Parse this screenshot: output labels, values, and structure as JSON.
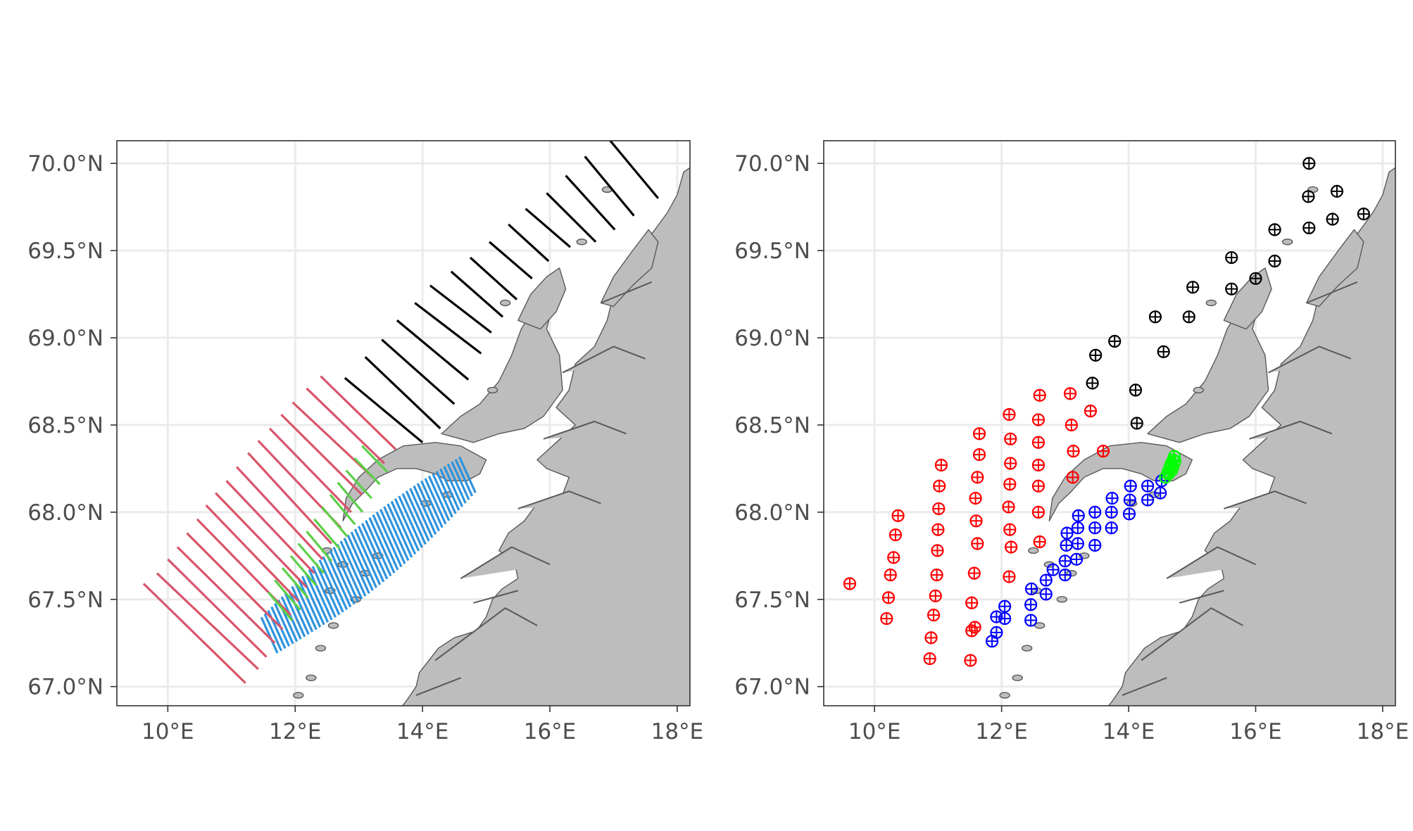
{
  "axes": {
    "x_ticks": [
      "10°E",
      "12°E",
      "14°E",
      "16°E",
      "18°E"
    ],
    "y_ticks": [
      "70.0°N",
      "69.5°N",
      "69.0°N",
      "68.5°N",
      "68.0°N",
      "67.5°N",
      "67.0°N"
    ]
  },
  "colors": {
    "red": "#d9546b",
    "green": "#5ccf48",
    "blue": "#2e93dd",
    "black": "#000000",
    "pt_red": "#ff0000",
    "pt_blue": "#0000ff",
    "pt_green": "#00ff00",
    "pt_black": "#000000",
    "land": "#bdbdbd"
  },
  "chart_data": [
    {
      "type": "map-transects",
      "xlim": [
        9.2,
        18.2
      ],
      "ylim": [
        66.89,
        70.13
      ],
      "x_ticks": [
        10,
        12,
        14,
        16,
        18
      ],
      "y_ticks": [
        70.0,
        69.5,
        69.0,
        68.5,
        68.0,
        67.5,
        67.0
      ],
      "transects": {
        "red": [
          [
            [
              9.62,
              67.59
            ],
            [
              11.22,
              67.02
            ]
          ],
          [
            [
              9.83,
              67.65
            ],
            [
              11.42,
              67.1
            ]
          ],
          [
            [
              10.0,
              67.73
            ],
            [
              11.55,
              67.17
            ]
          ],
          [
            [
              10.15,
              67.8
            ],
            [
              11.68,
              67.25
            ]
          ],
          [
            [
              10.3,
              67.88
            ],
            [
              11.8,
              67.33
            ]
          ],
          [
            [
              10.46,
              67.96
            ],
            [
              11.93,
              67.41
            ]
          ],
          [
            [
              10.6,
              68.04
            ],
            [
              12.05,
              67.49
            ]
          ],
          [
            [
              10.75,
              68.11
            ],
            [
              12.18,
              67.57
            ]
          ],
          [
            [
              10.92,
              68.18
            ],
            [
              12.3,
              67.65
            ]
          ],
          [
            [
              11.08,
              68.26
            ],
            [
              12.43,
              67.73
            ]
          ],
          [
            [
              11.26,
              68.34
            ],
            [
              12.57,
              67.82
            ]
          ],
          [
            [
              11.42,
              68.41
            ],
            [
              12.72,
              67.91
            ]
          ],
          [
            [
              11.6,
              68.48
            ],
            [
              12.88,
              68.0
            ]
          ],
          [
            [
              11.78,
              68.56
            ],
            [
              13.05,
              68.1
            ]
          ],
          [
            [
              11.96,
              68.63
            ],
            [
              13.22,
              68.2
            ]
          ],
          [
            [
              12.18,
              68.71
            ],
            [
              13.4,
              68.28
            ]
          ],
          [
            [
              12.4,
              68.78
            ],
            [
              13.58,
              68.36
            ]
          ]
        ],
        "green": [
          [
            [
              11.58,
              67.54
            ],
            [
              11.95,
              67.38
            ]
          ],
          [
            [
              11.68,
              67.61
            ],
            [
              12.08,
              67.44
            ]
          ],
          [
            [
              11.8,
              67.68
            ],
            [
              12.2,
              67.51
            ]
          ],
          [
            [
              11.93,
              67.75
            ],
            [
              12.33,
              67.58
            ]
          ],
          [
            [
              12.05,
              67.82
            ],
            [
              12.45,
              67.65
            ]
          ],
          [
            [
              12.18,
              67.89
            ],
            [
              12.57,
              67.72
            ]
          ],
          [
            [
              12.3,
              67.96
            ],
            [
              12.7,
              67.79
            ]
          ],
          [
            [
              12.42,
              68.03
            ],
            [
              12.82,
              67.86
            ]
          ],
          [
            [
              12.55,
              68.1
            ],
            [
              12.94,
              67.93
            ]
          ],
          [
            [
              12.67,
              68.17
            ],
            [
              13.06,
              68.0
            ]
          ],
          [
            [
              12.8,
              68.24
            ],
            [
              13.2,
              68.08
            ]
          ],
          [
            [
              12.93,
              68.31
            ],
            [
              13.33,
              68.16
            ]
          ],
          [
            [
              13.05,
              68.38
            ],
            [
              13.45,
              68.23
            ]
          ]
        ],
        "black": [
          [
            [
              12.78,
              68.77
            ],
            [
              14.0,
              68.4
            ]
          ],
          [
            [
              13.1,
              68.89
            ],
            [
              14.28,
              68.48
            ]
          ],
          [
            [
              13.36,
              68.99
            ],
            [
              14.5,
              68.62
            ]
          ],
          [
            [
              13.6,
              69.1
            ],
            [
              14.72,
              68.76
            ]
          ],
          [
            [
              13.88,
              69.2
            ],
            [
              14.92,
              68.91
            ]
          ],
          [
            [
              14.12,
              69.3
            ],
            [
              15.08,
              69.03
            ]
          ],
          [
            [
              14.45,
              69.38
            ],
            [
              15.26,
              69.12
            ]
          ],
          [
            [
              14.75,
              69.46
            ],
            [
              15.48,
              69.22
            ]
          ],
          [
            [
              15.05,
              69.55
            ],
            [
              15.72,
              69.34
            ]
          ],
          [
            [
              15.35,
              69.65
            ],
            [
              15.98,
              69.44
            ]
          ],
          [
            [
              15.62,
              69.74
            ],
            [
              16.32,
              69.52
            ]
          ],
          [
            [
              15.95,
              69.83
            ],
            [
              16.72,
              69.55
            ]
          ],
          [
            [
              16.25,
              69.93
            ],
            [
              17.02,
              69.62
            ]
          ],
          [
            [
              16.55,
              70.04
            ],
            [
              17.32,
              69.7
            ]
          ],
          [
            [
              16.88,
              70.16
            ],
            [
              17.7,
              69.8
            ]
          ]
        ],
        "blue_zone": {
          "line_count": 56,
          "start": [
            11.57,
            67.3
          ],
          "end": [
            14.68,
            68.22
          ]
        }
      }
    },
    {
      "type": "map-stations",
      "xlim": [
        9.2,
        18.2
      ],
      "ylim": [
        66.89,
        70.13
      ],
      "x_ticks": [
        10,
        12,
        14,
        16,
        18
      ],
      "y_ticks": [
        70.0,
        69.5,
        69.0,
        68.5,
        68.0,
        67.5,
        67.0
      ],
      "stations": {
        "red": [
          [
            9.61,
            67.59
          ],
          [
            10.19,
            67.39
          ],
          [
            10.22,
            67.51
          ],
          [
            10.25,
            67.64
          ],
          [
            10.3,
            67.74
          ],
          [
            10.33,
            67.87
          ],
          [
            10.37,
            67.98
          ],
          [
            10.87,
            67.16
          ],
          [
            10.89,
            67.28
          ],
          [
            10.93,
            67.41
          ],
          [
            10.96,
            67.52
          ],
          [
            10.98,
            67.64
          ],
          [
            10.99,
            67.78
          ],
          [
            11.0,
            67.9
          ],
          [
            11.01,
            68.02
          ],
          [
            11.02,
            68.15
          ],
          [
            11.05,
            68.27
          ],
          [
            11.51,
            67.15
          ],
          [
            11.53,
            67.32
          ],
          [
            11.58,
            67.34
          ],
          [
            11.53,
            67.48
          ],
          [
            11.57,
            67.65
          ],
          [
            11.62,
            67.82
          ],
          [
            11.6,
            67.95
          ],
          [
            11.59,
            68.08
          ],
          [
            11.62,
            68.2
          ],
          [
            11.65,
            68.33
          ],
          [
            11.65,
            68.45
          ],
          [
            12.12,
            67.63
          ],
          [
            12.15,
            67.8
          ],
          [
            12.13,
            67.9
          ],
          [
            12.11,
            68.03
          ],
          [
            12.13,
            68.16
          ],
          [
            12.14,
            68.28
          ],
          [
            12.14,
            68.42
          ],
          [
            12.12,
            68.56
          ],
          [
            12.6,
            67.83
          ],
          [
            12.58,
            68.0
          ],
          [
            12.58,
            68.15
          ],
          [
            12.58,
            68.27
          ],
          [
            12.58,
            68.4
          ],
          [
            12.58,
            68.53
          ],
          [
            12.6,
            68.67
          ],
          [
            13.12,
            68.2
          ],
          [
            13.13,
            68.35
          ],
          [
            13.1,
            68.5
          ],
          [
            13.08,
            68.68
          ],
          [
            13.4,
            68.58
          ],
          [
            13.6,
            68.35
          ]
        ],
        "blue": [
          [
            11.85,
            67.26
          ],
          [
            11.92,
            67.31
          ],
          [
            11.92,
            67.4
          ],
          [
            12.05,
            67.39
          ],
          [
            12.05,
            67.46
          ],
          [
            12.46,
            67.38
          ],
          [
            12.46,
            67.47
          ],
          [
            12.47,
            67.56
          ],
          [
            12.7,
            67.53
          ],
          [
            12.7,
            67.61
          ],
          [
            12.81,
            67.67
          ],
          [
            13.0,
            67.64
          ],
          [
            13.0,
            67.72
          ],
          [
            13.02,
            67.81
          ],
          [
            13.03,
            67.88
          ],
          [
            13.18,
            67.73
          ],
          [
            13.2,
            67.82
          ],
          [
            13.2,
            67.91
          ],
          [
            13.21,
            67.98
          ],
          [
            13.47,
            67.81
          ],
          [
            13.47,
            67.91
          ],
          [
            13.47,
            68.0
          ],
          [
            13.73,
            67.91
          ],
          [
            13.73,
            68.0
          ],
          [
            13.74,
            68.08
          ],
          [
            14.01,
            67.99
          ],
          [
            14.02,
            68.07
          ],
          [
            14.03,
            68.15
          ],
          [
            14.3,
            68.07
          ],
          [
            14.3,
            68.15
          ],
          [
            14.5,
            68.11
          ],
          [
            14.52,
            68.18
          ]
        ],
        "green": [
          [
            14.58,
            68.2
          ],
          [
            14.62,
            68.23
          ],
          [
            14.65,
            68.26
          ],
          [
            14.67,
            68.28
          ],
          [
            14.7,
            68.3
          ],
          [
            14.72,
            68.32
          ],
          [
            14.63,
            68.22
          ],
          [
            14.68,
            68.24
          ],
          [
            14.7,
            68.26
          ],
          [
            14.73,
            68.29
          ]
        ],
        "black": [
          [
            13.43,
            68.74
          ],
          [
            13.48,
            68.9
          ],
          [
            13.78,
            68.98
          ],
          [
            14.11,
            68.7
          ],
          [
            14.13,
            68.51
          ],
          [
            14.42,
            69.12
          ],
          [
            14.55,
            68.92
          ],
          [
            14.95,
            69.12
          ],
          [
            15.01,
            69.29
          ],
          [
            15.62,
            69.28
          ],
          [
            15.62,
            69.46
          ],
          [
            16.0,
            69.34
          ],
          [
            16.3,
            69.44
          ],
          [
            16.3,
            69.62
          ],
          [
            16.84,
            69.63
          ],
          [
            16.83,
            69.81
          ],
          [
            16.84,
            70.0
          ],
          [
            17.21,
            69.68
          ],
          [
            17.28,
            69.84
          ],
          [
            17.7,
            69.71
          ]
        ]
      }
    }
  ]
}
